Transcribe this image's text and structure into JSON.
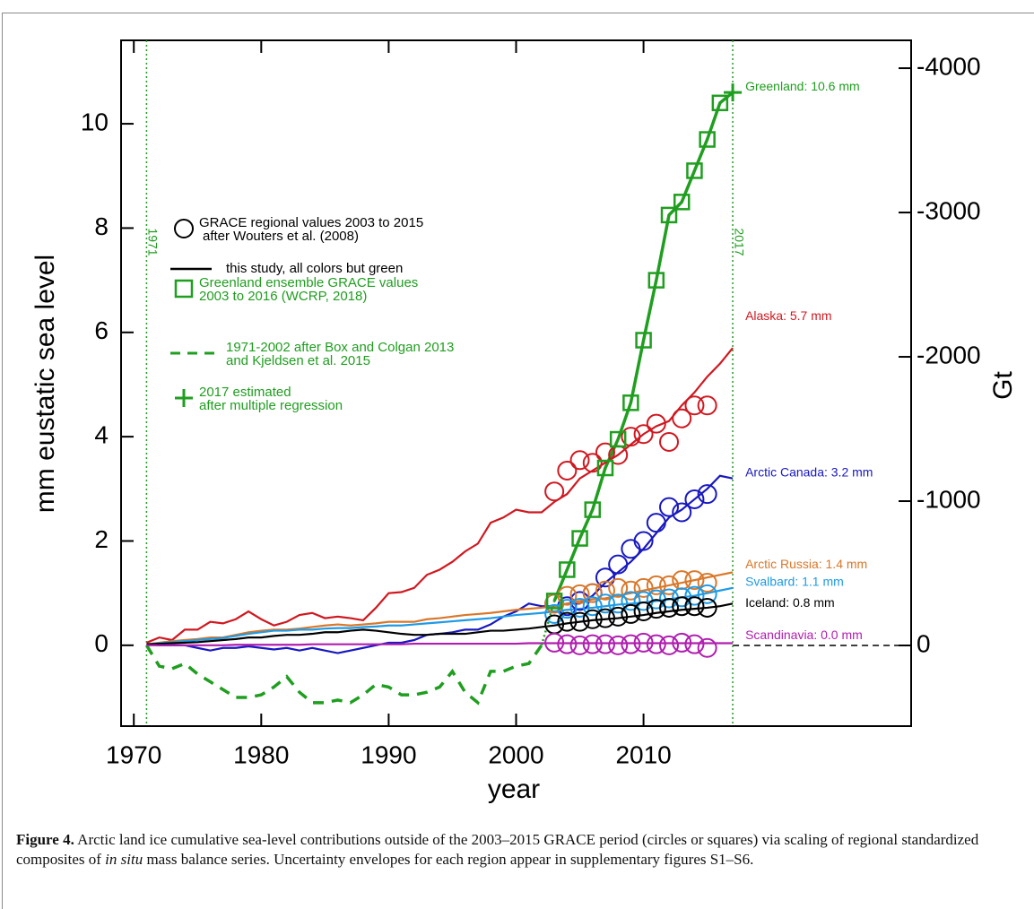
{
  "chart_data": {
    "type": "line",
    "xlabel": "year",
    "ylabel": "mm eustatic sea level",
    "y2label": "Gt",
    "xlim": [
      1969,
      2031
    ],
    "xticks": [
      1970,
      1980,
      1990,
      2000,
      2010
    ],
    "ylim": [
      -1.55,
      11.6
    ],
    "yticks": [
      0,
      2,
      4,
      6,
      8,
      10
    ],
    "y2lim": [
      559,
      -4193
    ],
    "y2ticks": [
      -4000,
      -3000,
      -2000,
      -1000,
      0
    ],
    "markers": [
      1971,
      2017
    ],
    "x": [
      1971,
      1972,
      1973,
      1974,
      1975,
      1976,
      1977,
      1978,
      1979,
      1980,
      1981,
      1982,
      1983,
      1984,
      1985,
      1986,
      1987,
      1988,
      1989,
      1990,
      1991,
      1992,
      1993,
      1994,
      1995,
      1996,
      1997,
      1998,
      1999,
      2000,
      2001,
      2002,
      2003,
      2004,
      2005,
      2006,
      2007,
      2008,
      2009,
      2010,
      2011,
      2012,
      2013,
      2014,
      2015,
      2016,
      2017
    ],
    "series": [
      {
        "name": "Greenland: 10.6 mm",
        "color": "#1f9e1f",
        "values": [
          null,
          null,
          null,
          null,
          null,
          null,
          null,
          null,
          null,
          null,
          null,
          null,
          null,
          null,
          null,
          null,
          null,
          null,
          null,
          null,
          null,
          null,
          null,
          null,
          null,
          null,
          null,
          null,
          null,
          null,
          null,
          null,
          0.85,
          1.45,
          2.05,
          2.6,
          3.4,
          3.95,
          4.65,
          5.85,
          7.0,
          8.25,
          8.5,
          9.1,
          9.7,
          10.4,
          10.6
        ]
      },
      {
        "color": "#1f9e1f",
        "dash": true,
        "values": [
          0,
          -0.4,
          -0.45,
          -0.35,
          -0.55,
          -0.7,
          -0.85,
          -1.0,
          -1.0,
          -0.95,
          -0.8,
          -0.6,
          -0.9,
          -1.1,
          -1.1,
          -1.05,
          -1.1,
          -0.95,
          -0.75,
          -0.8,
          -0.95,
          -0.95,
          -0.9,
          -0.8,
          -0.5,
          -0.9,
          -1.1,
          -0.5,
          -0.5,
          -0.4,
          -0.35,
          0.0,
          null,
          null,
          null,
          null,
          null,
          null,
          null,
          null,
          null,
          null,
          null,
          null,
          null,
          null,
          null
        ]
      },
      {
        "name": "Alaska: 5.7 mm",
        "color": "#d01820",
        "values": [
          0.05,
          0.15,
          0.1,
          0.3,
          0.3,
          0.45,
          0.42,
          0.5,
          0.65,
          0.5,
          0.38,
          0.45,
          0.58,
          0.62,
          0.52,
          0.55,
          0.52,
          0.48,
          0.72,
          1.0,
          1.02,
          1.1,
          1.35,
          1.45,
          1.6,
          1.8,
          1.95,
          2.35,
          2.45,
          2.6,
          2.55,
          2.55,
          2.75,
          2.9,
          3.2,
          3.35,
          3.5,
          3.65,
          3.85,
          4.05,
          4.2,
          4.3,
          4.6,
          4.85,
          5.15,
          5.4,
          5.7
        ],
        "grace": [
          2.95,
          3.35,
          3.55,
          3.5,
          3.7,
          3.65,
          4.0,
          4.05,
          4.25,
          3.9,
          4.35,
          4.6,
          4.6
        ]
      },
      {
        "name": "Arctic Canada: 3.2 mm",
        "color": "#1818c0",
        "values": [
          0.02,
          0.0,
          0.0,
          0.0,
          -0.05,
          -0.1,
          -0.05,
          -0.05,
          -0.02,
          -0.05,
          -0.08,
          -0.05,
          -0.1,
          -0.05,
          -0.1,
          -0.15,
          -0.1,
          -0.05,
          0.0,
          0.05,
          0.05,
          0.1,
          0.2,
          0.22,
          0.25,
          0.3,
          0.3,
          0.4,
          0.55,
          0.65,
          0.8,
          0.75,
          0.75,
          0.8,
          0.8,
          0.95,
          1.2,
          1.4,
          1.6,
          1.85,
          2.15,
          2.45,
          2.6,
          2.8,
          3.0,
          3.25,
          3.2
        ],
        "grace": [
          0.8,
          0.75,
          0.85,
          1.0,
          1.3,
          1.55,
          1.85,
          2.0,
          2.35,
          2.65,
          2.55,
          2.8,
          2.9
        ]
      },
      {
        "name": "Arctic Russia: 1.4 mm",
        "color": "#d9782a",
        "values": [
          0.02,
          0.05,
          0.08,
          0.1,
          0.12,
          0.15,
          0.15,
          0.2,
          0.25,
          0.28,
          0.3,
          0.3,
          0.32,
          0.35,
          0.38,
          0.4,
          0.38,
          0.4,
          0.42,
          0.45,
          0.45,
          0.45,
          0.5,
          0.52,
          0.55,
          0.58,
          0.6,
          0.62,
          0.65,
          0.68,
          0.7,
          0.72,
          0.75,
          0.8,
          0.85,
          0.88,
          0.9,
          0.95,
          1.0,
          1.05,
          1.1,
          1.15,
          1.2,
          1.25,
          1.3,
          1.35,
          1.4
        ],
        "grace": [
          0.8,
          0.95,
          0.98,
          1.0,
          1.05,
          1.1,
          1.05,
          1.1,
          1.15,
          1.15,
          1.25,
          1.25,
          1.2
        ]
      },
      {
        "name": "Svalbard: 1.1 mm",
        "color": "#1e9be6",
        "values": [
          0.02,
          0.04,
          0.06,
          0.08,
          0.1,
          0.12,
          0.14,
          0.18,
          0.22,
          0.25,
          0.28,
          0.28,
          0.3,
          0.3,
          0.32,
          0.33,
          0.33,
          0.35,
          0.36,
          0.38,
          0.38,
          0.4,
          0.42,
          0.44,
          0.46,
          0.48,
          0.5,
          0.52,
          0.55,
          0.58,
          0.6,
          0.62,
          0.65,
          0.68,
          0.7,
          0.72,
          0.75,
          0.78,
          0.8,
          0.82,
          0.85,
          0.88,
          0.92,
          0.95,
          1.0,
          1.05,
          1.1
        ],
        "grace": [
          0.6,
          0.7,
          0.72,
          0.75,
          0.8,
          0.8,
          0.85,
          0.85,
          0.88,
          0.9,
          0.92,
          0.95,
          0.98
        ]
      },
      {
        "name": "Iceland: 0.8 mm",
        "color": "#000000",
        "values": [
          0.02,
          0.03,
          0.04,
          0.05,
          0.06,
          0.08,
          0.1,
          0.12,
          0.15,
          0.15,
          0.18,
          0.2,
          0.2,
          0.22,
          0.25,
          0.25,
          0.28,
          0.3,
          0.28,
          0.25,
          0.22,
          0.2,
          0.2,
          0.22,
          0.22,
          0.22,
          0.25,
          0.28,
          0.28,
          0.3,
          0.32,
          0.35,
          0.38,
          0.42,
          0.45,
          0.48,
          0.5,
          0.52,
          0.55,
          0.58,
          0.62,
          0.65,
          0.68,
          0.7,
          0.72,
          0.75,
          0.8
        ],
        "grace": [
          0.4,
          0.45,
          0.45,
          0.5,
          0.52,
          0.55,
          0.6,
          0.65,
          0.7,
          0.72,
          0.75,
          0.75,
          0.72
        ]
      },
      {
        "name": "Scandinavia: 0.0 mm",
        "color": "#b01eb0",
        "values": [
          0,
          0,
          0,
          0,
          0,
          0,
          0,
          0.01,
          0.01,
          0.01,
          0.01,
          0.01,
          0.01,
          0.02,
          0.02,
          0.02,
          0.02,
          0.02,
          0.02,
          0.02,
          0.02,
          0.03,
          0.03,
          0.03,
          0.03,
          0.03,
          0.03,
          0.03,
          0.03,
          0.03,
          0.04,
          0.04,
          0.04,
          0.04,
          0.04,
          0.04,
          0.04,
          0.04,
          0.04,
          0.04,
          0.04,
          0.04,
          0.04,
          0.04,
          0.04,
          0.04,
          0.04
        ],
        "grace": [
          0.05,
          0.02,
          0.0,
          0.02,
          0.02,
          0.0,
          0.02,
          0.05,
          0.02,
          0.0,
          0.05,
          0.02,
          -0.05
        ]
      }
    ],
    "grace_x": [
      2003,
      2004,
      2005,
      2006,
      2007,
      2008,
      2009,
      2010,
      2011,
      2012,
      2013,
      2014,
      2015
    ],
    "greenland_ensemble": {
      "color": "#1f9e1f",
      "x": [
        2003,
        2004,
        2005,
        2006,
        2007,
        2008,
        2009,
        2010,
        2011,
        2012,
        2013,
        2014,
        2015,
        2016
      ],
      "values": [
        0.85,
        1.45,
        2.05,
        2.6,
        3.4,
        3.95,
        4.65,
        5.85,
        7.0,
        8.25,
        8.5,
        9.1,
        9.7,
        10.4
      ]
    },
    "estimate": {
      "color": "#1f9e1f",
      "x": 2017,
      "value": 10.6
    },
    "legend": [
      {
        "symbol": "circle",
        "color": "#000000",
        "lines": [
          "GRACE regional values 2003 to 2015",
          "after Wouters et al. (2008)"
        ]
      },
      {
        "symbol": "line",
        "color": "#000000",
        "lines": [
          "this study, all colors but green"
        ]
      },
      {
        "symbol": "square",
        "color": "#1f9e1f",
        "lines": [
          "Greenland ensemble GRACE values",
          "2003 to 2016 (WCRP, 2018)"
        ]
      },
      {
        "symbol": "dash",
        "color": "#1f9e1f",
        "lines": [
          "1971-2002 after Box and Colgan 2013",
          "and Kjeldsen et al. 2015"
        ]
      },
      {
        "symbol": "plus",
        "color": "#1f9e1f",
        "lines": [
          "2017 estimated",
          "after multiple regression"
        ]
      }
    ]
  },
  "caption": {
    "label": "Figure 4.",
    "text_before": "Arctic land ice cumulative sea-level contributions outside of the 2003–2015 GRACE period (circles or squares) via scaling of regional standardized composites of ",
    "italic": "in situ",
    "text_after": " mass balance series. Uncertainty envelopes for each region appear in supplementary figures S1–S6."
  }
}
